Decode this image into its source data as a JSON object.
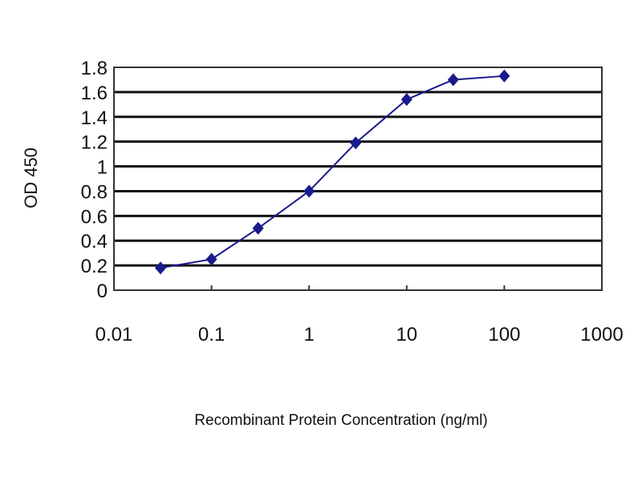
{
  "chart_data": {
    "type": "line",
    "title": "",
    "xlabel": "Recombinant Protein Concentration (ng/ml)",
    "ylabel": "OD 450",
    "x_scale": "log",
    "xlim": [
      0.01,
      1000
    ],
    "ylim": [
      0,
      1.8
    ],
    "x_tick_labels": [
      "0.01",
      "0.1",
      "1",
      "10",
      "100",
      "1000"
    ],
    "y_tick_labels": [
      "0",
      "0.2",
      "0.4",
      "0.6",
      "0.8",
      "1",
      "1.2",
      "1.4",
      "1.6",
      "1.8"
    ],
    "grid": "horizontal",
    "legend": "none",
    "series": [
      {
        "color": "#1a1a8c",
        "marker": "diamond",
        "x": [
          0.03,
          0.1,
          0.3,
          1,
          3,
          10,
          30,
          100
        ],
        "y": [
          0.18,
          0.25,
          0.5,
          0.8,
          1.19,
          1.54,
          1.7,
          1.73
        ]
      }
    ]
  }
}
